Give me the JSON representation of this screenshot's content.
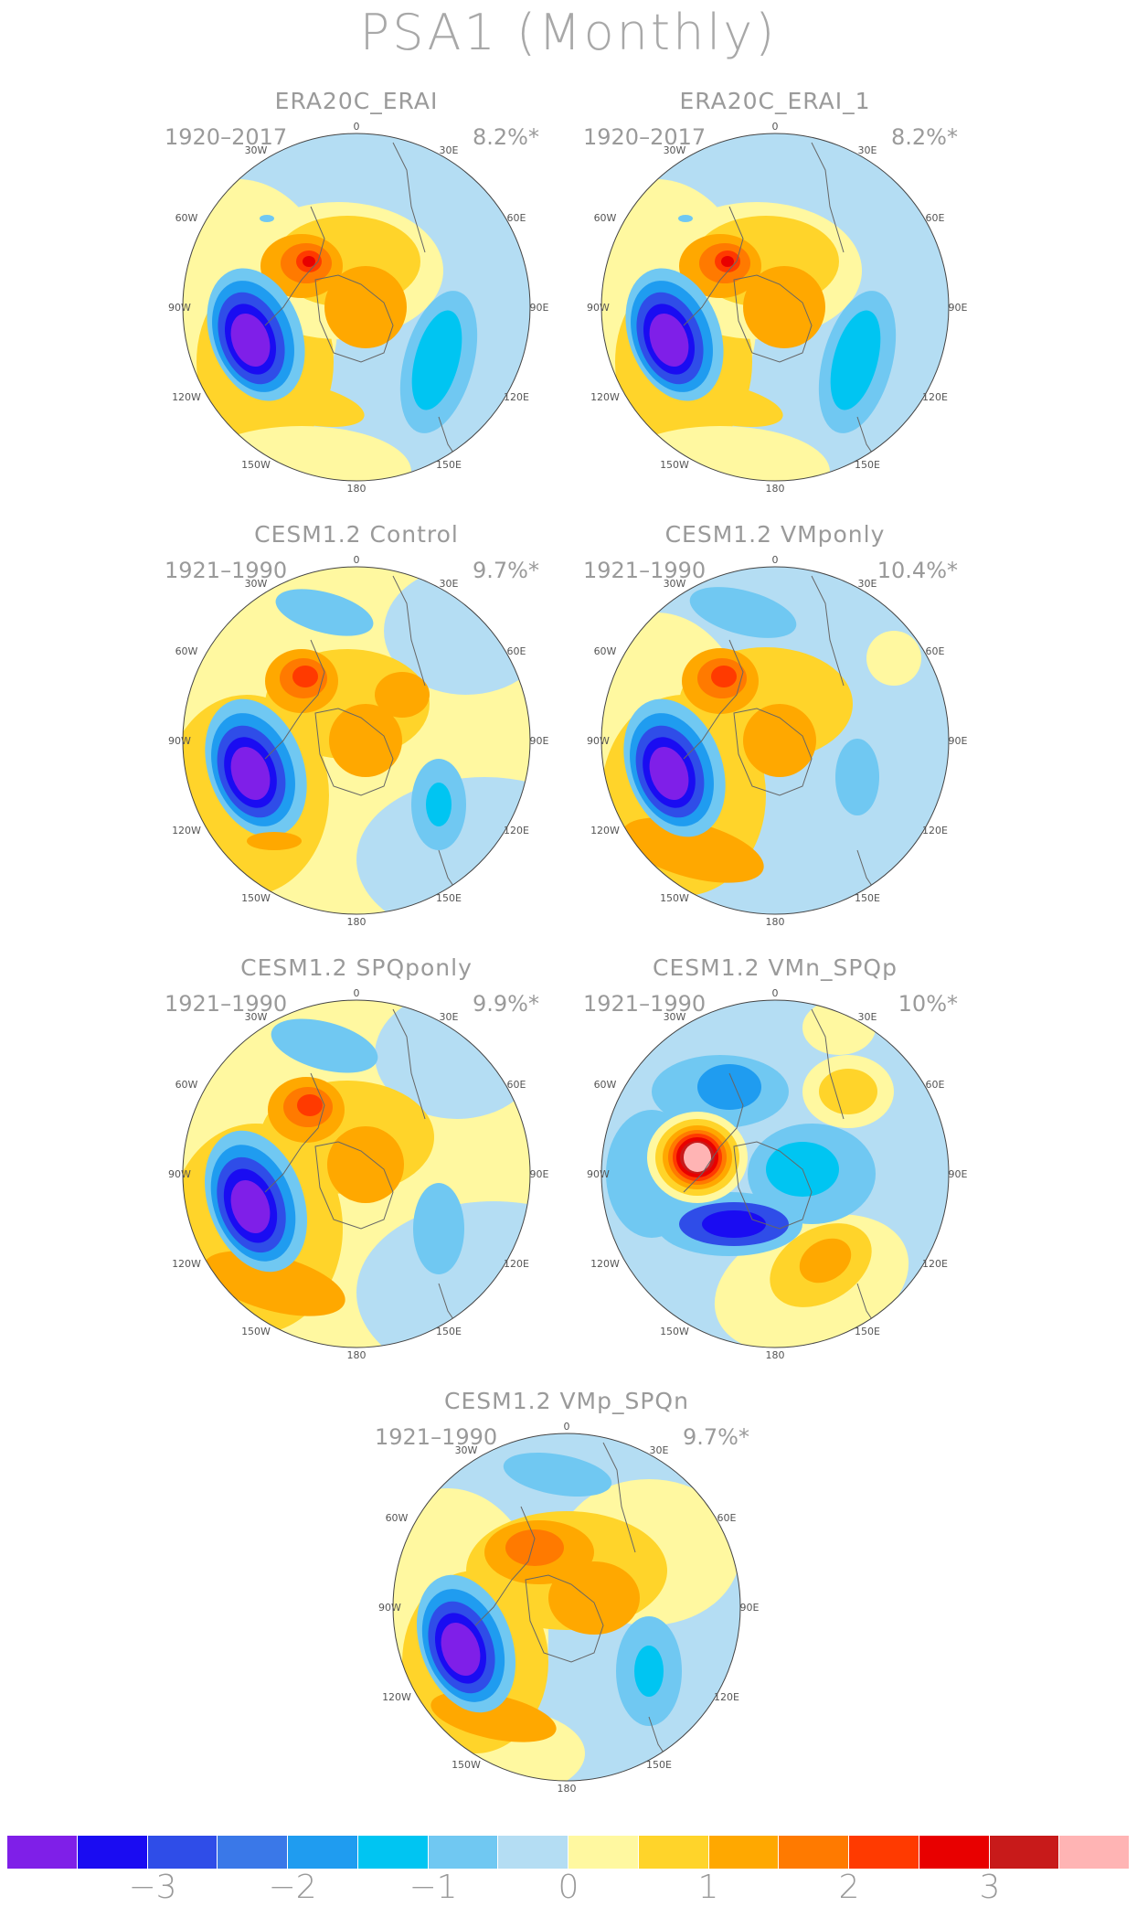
{
  "title": "PSA1 (Monthly)",
  "panels": [
    {
      "title": "ERA20C_ERAI",
      "years": "1920–2017",
      "pct": "8.2%*"
    },
    {
      "title": "ERA20C_ERAI_1",
      "years": "1920–2017",
      "pct": "8.2%*"
    },
    {
      "title": "CESM1.2 Control",
      "years": "1921–1990",
      "pct": "9.7%*"
    },
    {
      "title": "CESM1.2 VMponly",
      "years": "1921–1990",
      "pct": "10.4%*"
    },
    {
      "title": "CESM1.2 SPQponly",
      "years": "1921–1990",
      "pct": "9.9%*"
    },
    {
      "title": "CESM1.2 VMn_SPQp",
      "years": "1921–1990",
      "pct": "10%*"
    },
    {
      "title": "CESM1.2 VMp_SPQn",
      "years": "1921–1990",
      "pct": "9.7%*"
    }
  ],
  "longitude_labels": [
    "0",
    "30E",
    "60E",
    "90E",
    "120E",
    "150E",
    "180",
    "150W",
    "120W",
    "90W",
    "60W",
    "30W"
  ],
  "colorbar": {
    "colors": [
      "#7f1fe8",
      "#1a0cf2",
      "#2f4de8",
      "#3a78e8",
      "#1f9cf0",
      "#00c5f2",
      "#70c8f2",
      "#b4ddf3",
      "#fff8a0",
      "#ffd42a",
      "#ffa800",
      "#ff7a00",
      "#ff3a00",
      "#e80000",
      "#c81a1a",
      "#ffb4b4"
    ],
    "ticks": [
      "−3",
      "−2",
      "−1",
      "0",
      "1",
      "2",
      "3"
    ]
  }
}
